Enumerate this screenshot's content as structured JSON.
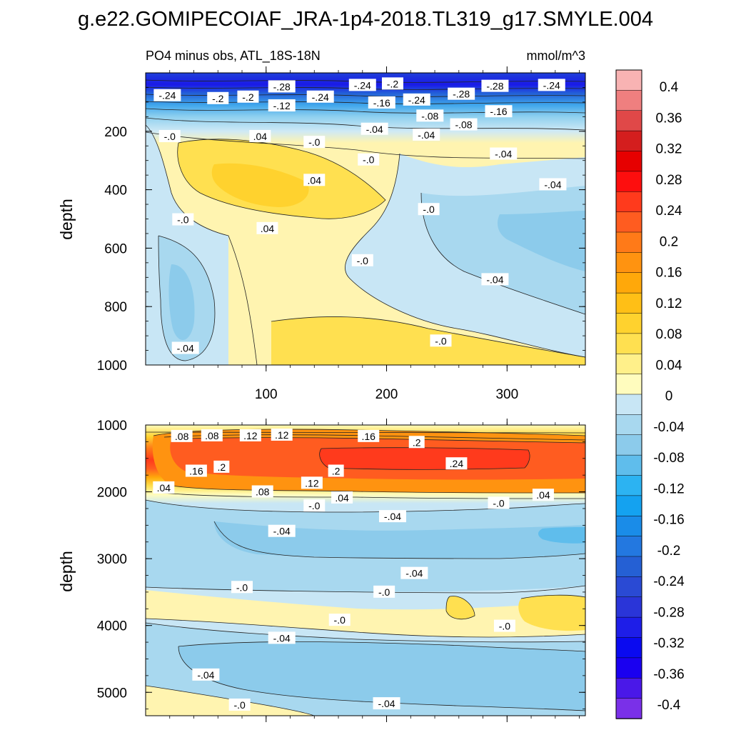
{
  "title": "g.e22.GOMIPECOIAF_JRA-1p4-2018.TL319_g17.SMYLE.004",
  "chart_data": [
    {
      "type": "heatmap",
      "subtitle": "PO4 minus obs, ATL_18S-18N",
      "units": "mmol/m^3",
      "xlabel": "",
      "ylabel": "depth",
      "xlim": [
        0,
        365
      ],
      "ylim": [
        1000,
        0
      ],
      "xticks": [
        100,
        200,
        300
      ],
      "xtick_labels": [
        "100",
        "200",
        "300"
      ],
      "yticks": [
        200,
        400,
        600,
        800,
        1000
      ],
      "ytick_labels": [
        "200",
        "400",
        "600",
        "800",
        "1000"
      ],
      "contour_labels": [
        {
          "text": "-.24",
          "x": 18,
          "y": 80
        },
        {
          "text": "-.2",
          "x": 60,
          "y": 90
        },
        {
          "text": "-.2",
          "x": 85,
          "y": 85
        },
        {
          "text": "-.28",
          "x": 113,
          "y": 50
        },
        {
          "text": "-.12",
          "x": 113,
          "y": 115
        },
        {
          "text": "-.24",
          "x": 145,
          "y": 85
        },
        {
          "text": "-.24",
          "x": 180,
          "y": 45
        },
        {
          "text": "-.2",
          "x": 205,
          "y": 40
        },
        {
          "text": "-.16",
          "x": 196,
          "y": 105
        },
        {
          "text": "-.24",
          "x": 225,
          "y": 95
        },
        {
          "text": "-.28",
          "x": 262,
          "y": 75
        },
        {
          "text": "-.28",
          "x": 290,
          "y": 48
        },
        {
          "text": "-.24",
          "x": 337,
          "y": 45
        },
        {
          "text": "-.16",
          "x": 293,
          "y": 135
        },
        {
          "text": "-.08",
          "x": 236,
          "y": 150
        },
        {
          "text": "-.08",
          "x": 264,
          "y": 180
        },
        {
          "text": "-.04",
          "x": 190,
          "y": 195
        },
        {
          "text": "-.04",
          "x": 233,
          "y": 215
        },
        {
          "text": "-.04",
          "x": 297,
          "y": 280
        },
        {
          "text": "-.04",
          "x": 338,
          "y": 385
        },
        {
          "text": ".04",
          "x": 95,
          "y": 220
        },
        {
          "text": "-.0",
          "x": 140,
          "y": 240
        },
        {
          "text": "-.0",
          "x": 185,
          "y": 300
        },
        {
          "text": ".04",
          "x": 140,
          "y": 370
        },
        {
          "text": "-.0",
          "x": 20,
          "y": 220
        },
        {
          "text": "-.0",
          "x": 235,
          "y": 470
        },
        {
          "text": "-.0",
          "x": 31,
          "y": 505
        },
        {
          "text": ".04",
          "x": 101,
          "y": 535
        },
        {
          "text": "-.0",
          "x": 180,
          "y": 645
        },
        {
          "text": "-.04",
          "x": 290,
          "y": 710
        },
        {
          "text": "-.0",
          "x": 245,
          "y": 920
        },
        {
          "text": "-.04",
          "x": 33,
          "y": 945
        }
      ]
    },
    {
      "type": "heatmap",
      "subtitle": "",
      "units": "mmol/m^3",
      "xlabel": "",
      "ylabel": "depth",
      "xlim": [
        0,
        365
      ],
      "ylim": [
        5350,
        1000
      ],
      "xticks": [
        100,
        200,
        300
      ],
      "xtick_labels": [
        "",
        "",
        ""
      ],
      "yticks": [
        1000,
        2000,
        3000,
        4000,
        5000
      ],
      "ytick_labels": [
        "1000",
        "2000",
        "3000",
        "4000",
        "5000"
      ],
      "contour_labels": [
        {
          "text": ".08",
          "x": 30,
          "y": 1180
        },
        {
          "text": ".08",
          "x": 55,
          "y": 1170
        },
        {
          "text": ".12",
          "x": 87,
          "y": 1170
        },
        {
          "text": ".12",
          "x": 113,
          "y": 1160
        },
        {
          "text": ".16",
          "x": 185,
          "y": 1180
        },
        {
          "text": ".2",
          "x": 225,
          "y": 1270
        },
        {
          "text": ".24",
          "x": 258,
          "y": 1590
        },
        {
          "text": ".16",
          "x": 42,
          "y": 1700
        },
        {
          "text": ".2",
          "x": 63,
          "y": 1640
        },
        {
          "text": ".2",
          "x": 158,
          "y": 1700
        },
        {
          "text": ".12",
          "x": 138,
          "y": 1880
        },
        {
          "text": ".08",
          "x": 97,
          "y": 2010
        },
        {
          "text": ".04",
          "x": 15,
          "y": 1950
        },
        {
          "text": ".04",
          "x": 163,
          "y": 2100
        },
        {
          "text": "-.0",
          "x": 140,
          "y": 2220
        },
        {
          "text": "-.0",
          "x": 293,
          "y": 2180
        },
        {
          "text": ".04",
          "x": 330,
          "y": 2060
        },
        {
          "text": "-.04",
          "x": 205,
          "y": 2380
        },
        {
          "text": "-.04",
          "x": 113,
          "y": 2600
        },
        {
          "text": "-.04",
          "x": 223,
          "y": 3230
        },
        {
          "text": "-.0",
          "x": 80,
          "y": 3440
        },
        {
          "text": "-.0",
          "x": 198,
          "y": 3510
        },
        {
          "text": "-.0",
          "x": 161,
          "y": 3930
        },
        {
          "text": "-.0",
          "x": 298,
          "y": 4020
        },
        {
          "text": "-.04",
          "x": 113,
          "y": 4200
        },
        {
          "text": "-.04",
          "x": 50,
          "y": 4750
        },
        {
          "text": "-.0",
          "x": 78,
          "y": 5200
        },
        {
          "text": "-.04",
          "x": 200,
          "y": 5180
        }
      ]
    }
  ],
  "colorbar": {
    "labels": [
      "0.4",
      "0.36",
      "0.32",
      "0.28",
      "0.24",
      "0.2",
      "0.16",
      "0.12",
      "0.08",
      "0.04",
      "0",
      "-0.04",
      "-0.08",
      "-0.12",
      "-0.16",
      "-0.2",
      "-0.24",
      "-0.28",
      "-0.32",
      "-0.36",
      "-0.4"
    ],
    "colors": [
      "#f8b3b3",
      "#ef7f7f",
      "#e04848",
      "#d41e1e",
      "#e60000",
      "#fd0e0e",
      "#ff3a1c",
      "#ff5c20",
      "#ff7a18",
      "#ff9310",
      "#ffa80a",
      "#ffbf16",
      "#ffd22e",
      "#ffe050",
      "#fff08a",
      "#fffcbe",
      "#c8e6f5",
      "#a8d8ef",
      "#8ccbeb",
      "#5fbdec",
      "#2cb3f2",
      "#14a2f0",
      "#1a8ce8",
      "#2378e0",
      "#2560d4",
      "#2a4ad4",
      "#2a35d8",
      "#1e1ee8",
      "#0a0af0",
      "#1a00f0",
      "#4a18e8",
      "#7a30e8"
    ]
  }
}
